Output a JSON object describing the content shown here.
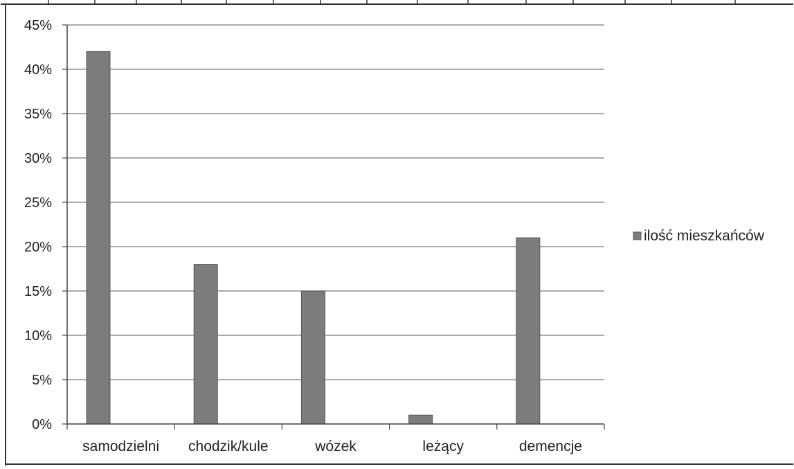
{
  "chart_data": {
    "type": "bar",
    "categories": [
      "samodzielni",
      "chodzik/kule",
      "wózek",
      "leżący",
      "demencje"
    ],
    "series": [
      {
        "name": "ilość mieszkańców",
        "values": [
          42,
          18,
          15,
          1,
          21
        ]
      }
    ],
    "ylim": [
      0,
      45
    ],
    "yticks": [
      "0%",
      "5%",
      "10%",
      "15%",
      "20%",
      "25%",
      "30%",
      "35%",
      "40%",
      "45%"
    ],
    "grid": true,
    "legend_position": "right",
    "colors": {
      "bar": "#7c7c7c",
      "bar_edge": "#555555",
      "grid": "#7a7a7a",
      "frame": "#333333"
    }
  }
}
